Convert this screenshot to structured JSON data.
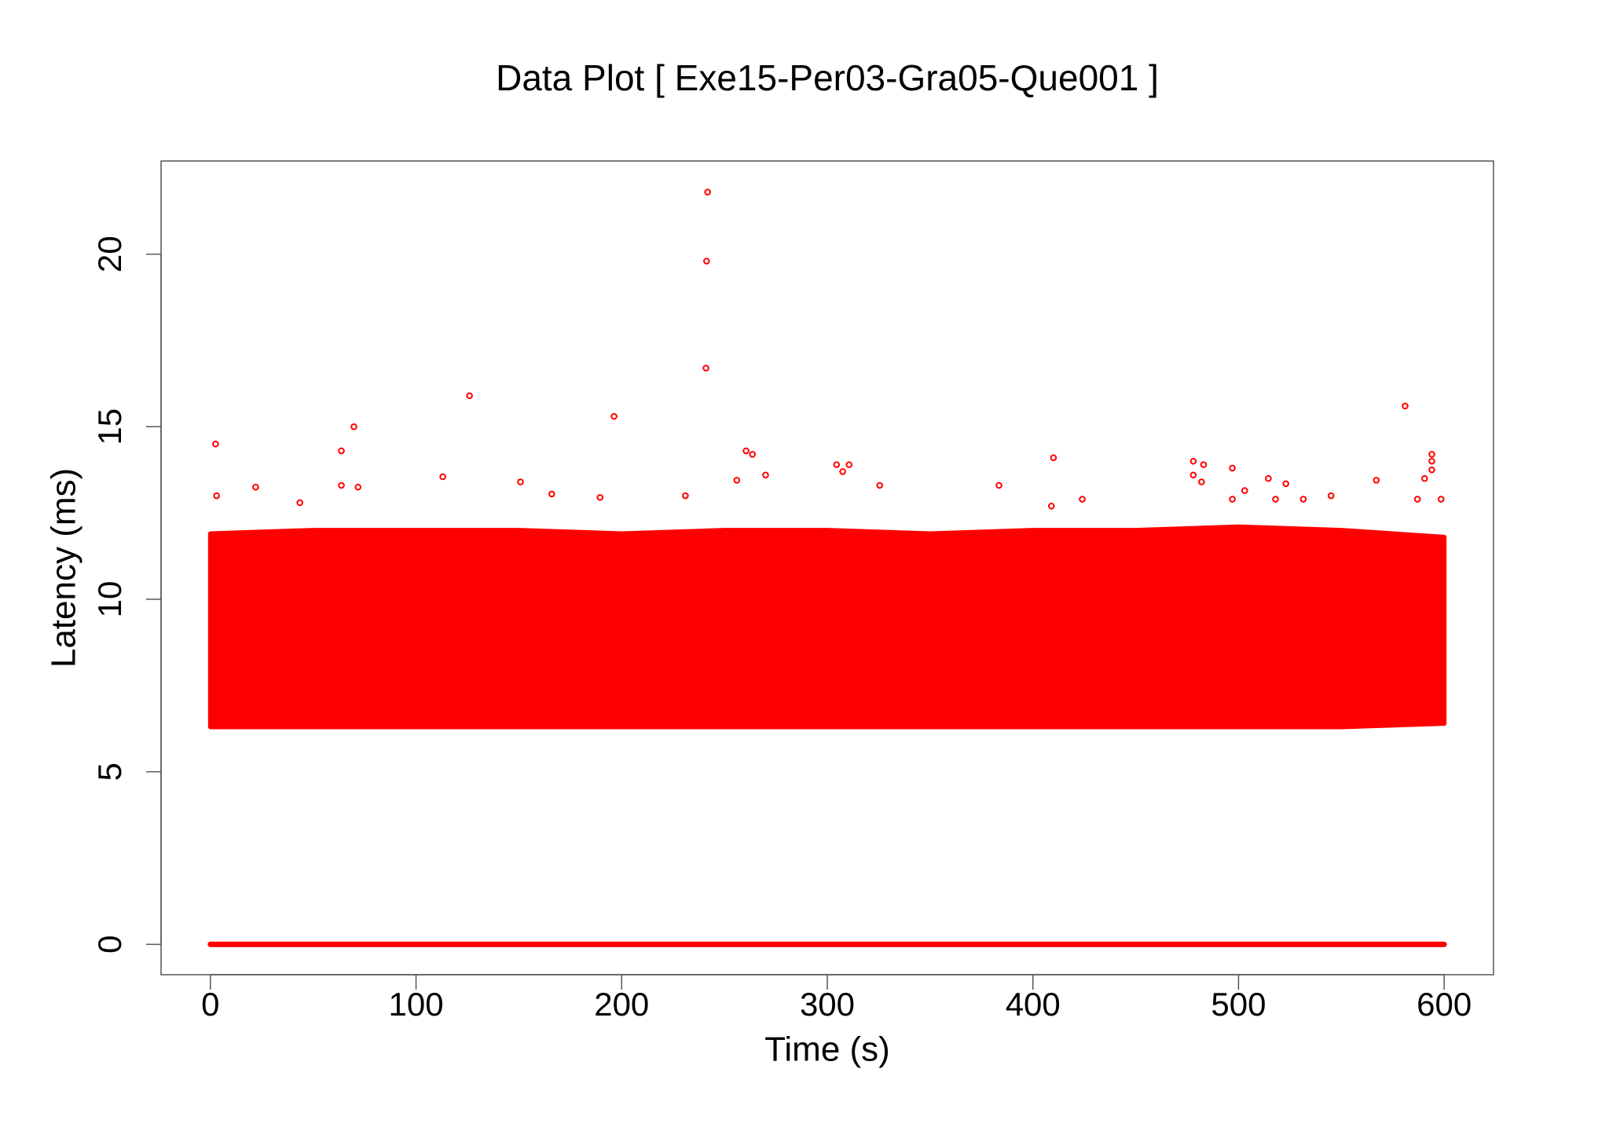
{
  "chart_data": {
    "type": "scatter",
    "title": "Data Plot [ Exe15-Per03-Gra05-Que001 ]",
    "x_label": "Time (s)",
    "y_label": "Latency (ms)",
    "xlim": [
      -24,
      624
    ],
    "ylim": [
      -0.88,
      22.7
    ],
    "xticks": [
      0,
      100,
      200,
      300,
      400,
      500,
      600
    ],
    "yticks": [
      0,
      5,
      10,
      15,
      20
    ],
    "band": {
      "color": "#ff0000",
      "x": [
        0,
        50,
        100,
        150,
        200,
        250,
        300,
        350,
        400,
        450,
        500,
        550,
        600
      ],
      "low": [
        6.3,
        6.3,
        6.3,
        6.3,
        6.3,
        6.3,
        6.3,
        6.3,
        6.3,
        6.3,
        6.3,
        6.3,
        6.4
      ],
      "high": [
        11.9,
        12.0,
        12.0,
        12.0,
        11.9,
        12.0,
        12.0,
        11.9,
        12.0,
        12.0,
        12.1,
        12.0,
        11.8
      ]
    },
    "baseline": {
      "color": "#ff0000",
      "x": [
        0,
        600
      ],
      "values": [
        0,
        0
      ]
    },
    "series": [
      {
        "color": "#ff0000",
        "x": [
          241.8,
          241.3,
          241,
          126,
          581,
          196.3,
          69.8,
          2.5,
          63.7,
          260.5,
          263.6,
          410,
          594,
          594,
          478,
          304.5,
          310.6,
          483,
          497,
          307.5,
          594,
          270,
          478,
          590.5,
          113,
          514.5,
          150.8,
          256,
          523,
          567,
          325.5,
          383.5,
          63.7,
          71.8,
          482,
          503,
          166,
          22,
          545,
          497,
          3,
          231,
          424,
          587,
          598.5,
          189.5,
          43.5,
          409,
          518,
          531.5
        ],
        "values": [
          21.8,
          19.8,
          16.7,
          15.9,
          15.6,
          15.3,
          15.0,
          14.5,
          14.3,
          14.3,
          14.2,
          14.1,
          14.2,
          14.0,
          14.0,
          13.9,
          13.9,
          13.9,
          13.8,
          13.7,
          13.75,
          13.6,
          13.6,
          13.5,
          13.55,
          13.5,
          13.4,
          13.45,
          13.35,
          13.45,
          13.3,
          13.3,
          13.3,
          13.25,
          13.4,
          13.15,
          13.05,
          13.25,
          13.0,
          12.9,
          13.0,
          13.0,
          12.9,
          12.9,
          12.9,
          12.95,
          12.8,
          12.7,
          12.9,
          12.9
        ]
      }
    ]
  }
}
